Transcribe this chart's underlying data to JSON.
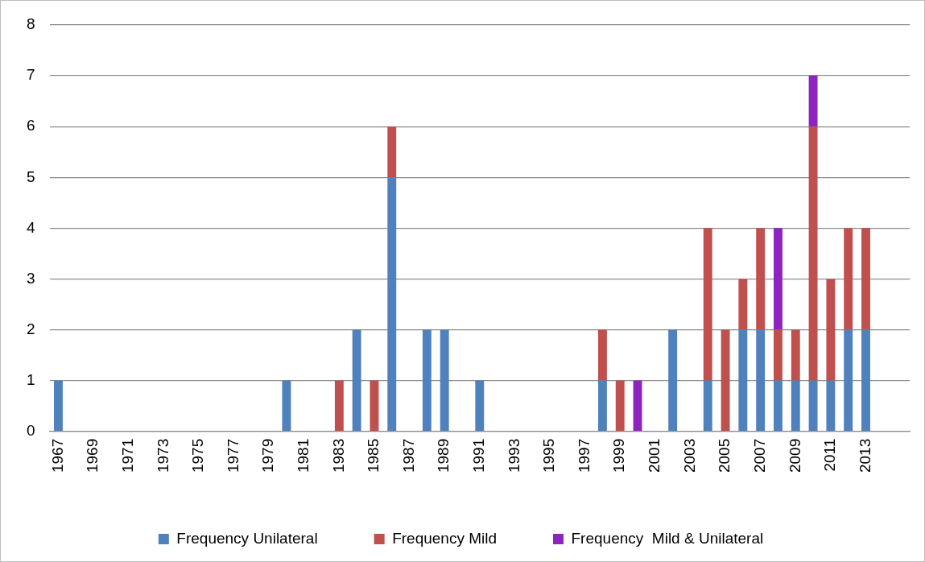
{
  "chart_data": {
    "type": "bar",
    "stacked": true,
    "categories": [
      "1967",
      null,
      "1969",
      null,
      "1971",
      null,
      "1973",
      null,
      "1975",
      null,
      "1977",
      null,
      "1979",
      null,
      "1981",
      null,
      "1983",
      null,
      "1985",
      null,
      "1987",
      null,
      "1989",
      null,
      "1991",
      null,
      "1993",
      null,
      "1995",
      null,
      "1997",
      null,
      "1999",
      null,
      "2001",
      null,
      "2003",
      null,
      "2005",
      null,
      "2007",
      null,
      "2009",
      null,
      "2011",
      null,
      "2013",
      null,
      null
    ],
    "series": [
      {
        "name": "Frequency Unilateral",
        "color": "#4f81bd",
        "values": [
          1,
          0,
          0,
          0,
          0,
          0,
          0,
          0,
          0,
          0,
          0,
          0,
          0,
          1,
          0,
          0,
          0,
          2,
          0,
          5,
          0,
          2,
          2,
          0,
          1,
          0,
          0,
          0,
          0,
          0,
          0,
          1,
          0,
          0,
          0,
          2,
          0,
          1,
          0,
          2,
          2,
          1,
          1,
          1,
          1,
          2,
          2,
          0,
          0
        ]
      },
      {
        "name": "Frequency Mild",
        "color": "#c0504d",
        "values": [
          0,
          0,
          0,
          0,
          0,
          0,
          0,
          0,
          0,
          0,
          0,
          0,
          0,
          0,
          0,
          0,
          1,
          0,
          1,
          1,
          0,
          0,
          0,
          0,
          0,
          0,
          0,
          0,
          0,
          0,
          0,
          1,
          1,
          0,
          0,
          0,
          0,
          3,
          2,
          1,
          2,
          1,
          1,
          5,
          2,
          2,
          2,
          0,
          0
        ]
      },
      {
        "name": "Frequency  Mild & Unilateral",
        "color": "#8e24c0",
        "values": [
          0,
          0,
          0,
          0,
          0,
          0,
          0,
          0,
          0,
          0,
          0,
          0,
          0,
          0,
          0,
          0,
          0,
          0,
          0,
          0,
          0,
          0,
          0,
          0,
          0,
          0,
          0,
          0,
          0,
          0,
          0,
          0,
          0,
          1,
          0,
          0,
          0,
          0,
          0,
          0,
          0,
          2,
          0,
          1,
          0,
          0,
          0,
          0,
          0
        ]
      }
    ],
    "ylim": [
      0,
      8
    ],
    "yticks": [
      0,
      1,
      2,
      3,
      4,
      5,
      6,
      7,
      8
    ],
    "grid": "y",
    "legend": "bottom"
  }
}
